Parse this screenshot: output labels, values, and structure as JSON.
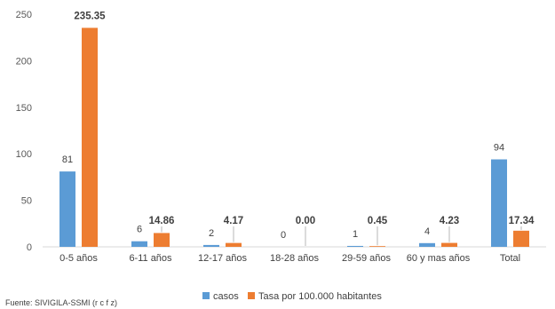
{
  "chart_data": {
    "type": "bar",
    "title": "",
    "xlabel": "",
    "ylabel": "",
    "ylim": [
      0,
      250
    ],
    "yticks": [
      0,
      50,
      100,
      150,
      200,
      250
    ],
    "grid": false,
    "legend_position": "bottom",
    "categories": [
      "0-5 años",
      "6-11 años",
      "12-17 años",
      "18-28 años",
      "29-59 años",
      "60 y mas años",
      "Total"
    ],
    "series": [
      {
        "name": "casos",
        "color": "#5B9BD5",
        "values": [
          81,
          6,
          2,
          0,
          1,
          4,
          94
        ],
        "labels": [
          "81",
          "6",
          "2",
          "0",
          "1",
          "4",
          "94"
        ]
      },
      {
        "name": "Tasa por 100.000 habitantes",
        "color": "#ED7D31",
        "values": [
          235.35,
          14.86,
          4.17,
          0.0,
          0.45,
          4.23,
          17.34
        ],
        "labels": [
          "235.35",
          "14.86",
          "4.17",
          "0.00",
          "0.45",
          "4.23",
          "17.34"
        ]
      }
    ],
    "source": "Fuente: SIVIGILA-SSMI (r c f z)"
  }
}
